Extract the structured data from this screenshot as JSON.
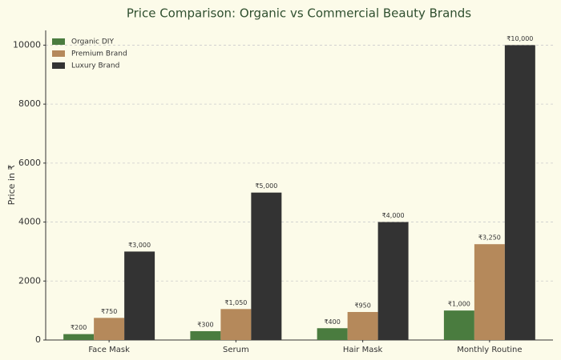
{
  "chart_data": {
    "type": "bar",
    "title": "Price Comparison: Organic vs Commercial Beauty Brands",
    "y_label": "Price in ₹",
    "categories": [
      "Face Mask",
      "Serum",
      "Hair Mask",
      "Monthly Routine"
    ],
    "series": [
      {
        "name": "Organic DIY",
        "color": "#4a7c3f",
        "values": [
          200,
          300,
          400,
          1000
        ],
        "value_labels": [
          "₹200",
          "₹300",
          "₹400",
          "₹1,000"
        ]
      },
      {
        "name": "Premium Brand",
        "color": "#b5895b",
        "values": [
          750,
          1050,
          950,
          3250
        ],
        "value_labels": [
          "₹750",
          "₹1,050",
          "₹950",
          "₹3,250"
        ]
      },
      {
        "name": "Luxury Brand",
        "color": "#333333",
        "values": [
          3000,
          5000,
          4000,
          10000
        ],
        "value_labels": [
          "₹3,000",
          "₹5,000",
          "₹4,000",
          "₹10,000"
        ]
      }
    ],
    "ylim": [
      0,
      10500
    ],
    "yticks": [
      0,
      2000,
      4000,
      6000,
      8000,
      10000
    ],
    "grid": true,
    "legend": "upper left"
  }
}
